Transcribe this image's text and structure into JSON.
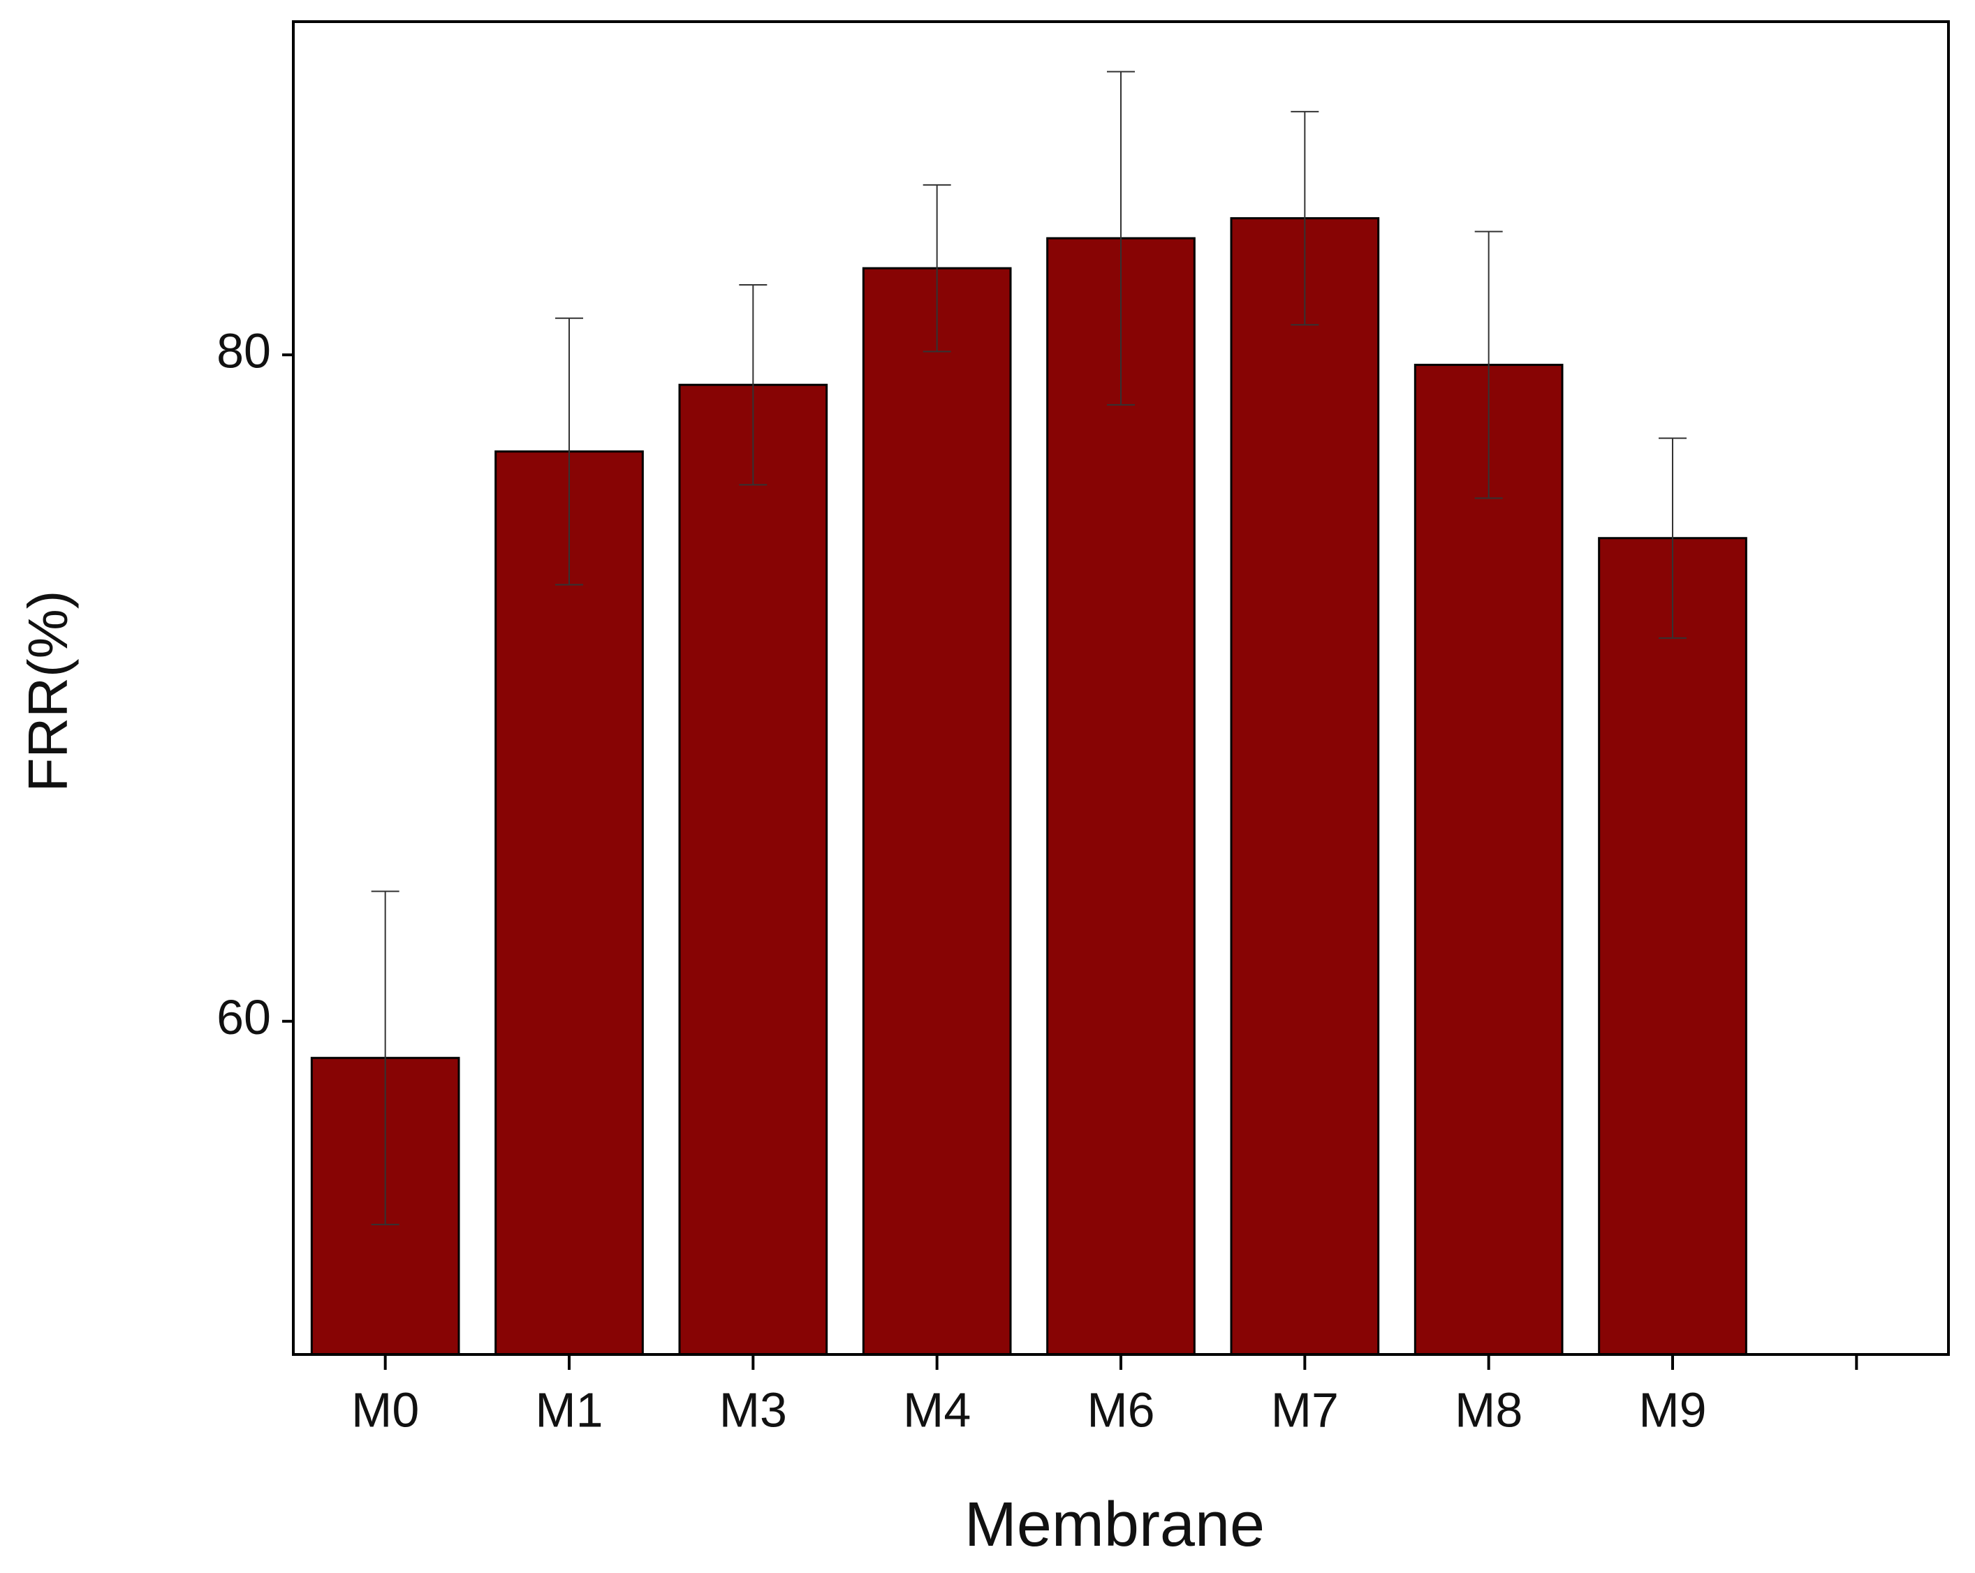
{
  "chart_data": {
    "type": "bar",
    "xlabel": "Membrane",
    "ylabel": "FRR(%)",
    "categories": [
      "M0",
      "M1",
      "M3",
      "M4",
      "M6",
      "M7",
      "M8",
      "M9",
      null
    ],
    "values": [
      58.9,
      77.1,
      79.1,
      82.6,
      83.5,
      84.1,
      79.7,
      74.5,
      null
    ],
    "errors": [
      5.0,
      4.0,
      3.0,
      2.5,
      5.0,
      3.2,
      4.0,
      3.0,
      null
    ],
    "color": "#870404",
    "ylim": [
      50,
      90
    ],
    "yticks": [
      60,
      80
    ],
    "grid": false
  }
}
